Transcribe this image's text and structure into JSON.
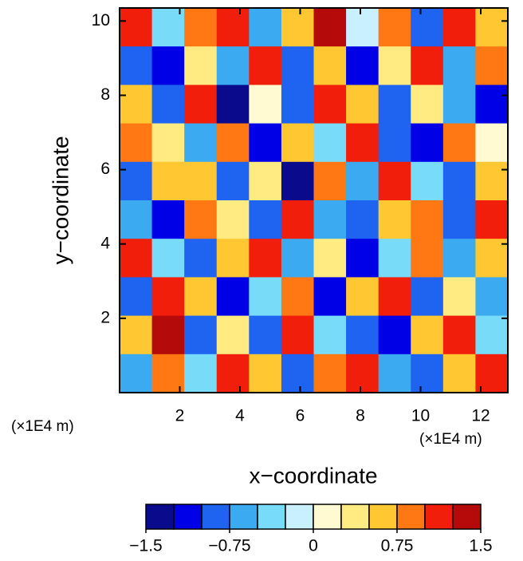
{
  "chart_data": {
    "type": "heatmap",
    "xlabel": "x−coordinate",
    "ylabel": "y−coordinate",
    "xunit": "(×1E4 m)",
    "yunit": "(×1E4 m)",
    "xlim": [
      0,
      12.9
    ],
    "ylim": [
      0,
      10.35
    ],
    "xticks": [
      2,
      4,
      6,
      8,
      10,
      12
    ],
    "yticks": [
      2,
      4,
      6,
      8,
      10
    ],
    "clim": [
      -1.5,
      1.5
    ],
    "colors": [
      "#0a0a8c",
      "#0000e6",
      "#1e64f0",
      "#3caaf0",
      "#78dcf8",
      "#c8f0ff",
      "#fffad2",
      "#ffeb82",
      "#ffc832",
      "#ff7814",
      "#f01e0a",
      "#b40a0a"
    ],
    "cticks": [
      {
        "value": -1.5,
        "label": "−1.5"
      },
      {
        "value": -0.75,
        "label": "−0.75"
      },
      0,
      0.75,
      1.5
    ],
    "z": [
      [
        1.0,
        -0.5,
        0.8,
        1.2,
        -0.7,
        0.5,
        1.3,
        -0.2,
        0.9,
        -0.8,
        1.1,
        0.6
      ],
      [
        -0.9,
        -1.1,
        0.4,
        -0.6,
        1.0,
        -1.0,
        0.7,
        -1.2,
        0.3,
        1.0,
        -0.6,
        0.8
      ],
      [
        0.6,
        -0.8,
        1.1,
        -1.3,
        0.2,
        -0.9,
        1.2,
        0.5,
        -1.0,
        0.4,
        -0.7,
        -1.1
      ],
      [
        0.9,
        0.3,
        -0.7,
        0.8,
        -1.1,
        0.6,
        -0.4,
        1.0,
        -0.8,
        -1.2,
        0.9,
        0.2
      ],
      [
        -1.0,
        0.7,
        0.5,
        -0.9,
        0.4,
        -1.3,
        0.9,
        -0.6,
        1.1,
        -0.5,
        -1.0,
        0.7
      ],
      [
        -0.6,
        -1.2,
        0.9,
        0.3,
        -0.8,
        1.1,
        -0.7,
        -1.0,
        0.5,
        0.8,
        -0.9,
        1.0
      ],
      [
        1.1,
        -0.4,
        -1.0,
        0.7,
        1.2,
        -0.6,
        0.4,
        -1.1,
        -0.3,
        0.9,
        -0.7,
        0.5
      ],
      [
        -0.8,
        1.0,
        0.6,
        -1.1,
        -0.5,
        0.8,
        -1.2,
        0.7,
        1.0,
        -0.9,
        0.3,
        -0.6
      ],
      [
        0.5,
        1.3,
        -0.9,
        0.4,
        -1.0,
        1.0,
        -0.5,
        -0.8,
        -1.1,
        0.6,
        1.1,
        -0.4
      ],
      [
        -0.7,
        0.9,
        -0.5,
        1.1,
        0.6,
        -1.0,
        0.8,
        1.2,
        -0.6,
        -1.0,
        0.7,
        1.0
      ]
    ]
  }
}
